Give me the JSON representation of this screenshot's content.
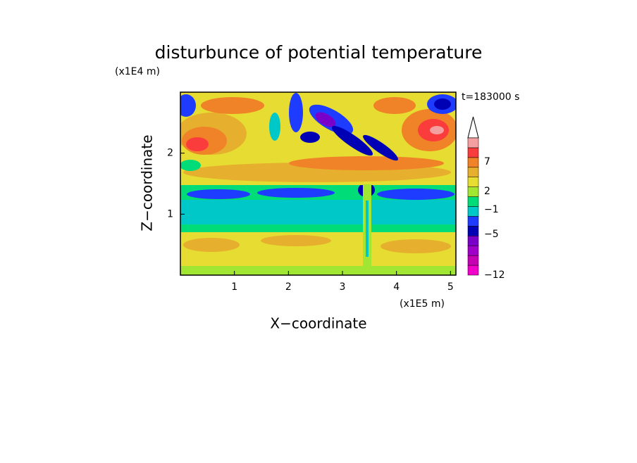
{
  "chart_data": {
    "type": "contour",
    "title": "disturbunce of potential temperature",
    "x_label": "X−coordinate",
    "y_label": "Z−coordinate",
    "x_unit": "(x1E5 m)",
    "y_unit": "(x1E4 m)",
    "annotation": "t=183000 s",
    "xlim": [
      0,
      5.1
    ],
    "ylim": [
      0,
      3
    ],
    "xticks": [
      1,
      2,
      3,
      4,
      5
    ],
    "yticks": [
      1,
      2
    ],
    "colorbar": {
      "colors": [
        "#f000c8",
        "#c800b4",
        "#a000c8",
        "#7800c8",
        "#0000b4",
        "#1e3cff",
        "#00c8c8",
        "#00dc78",
        "#a0e632",
        "#e6dc32",
        "#e6af2d",
        "#f08228",
        "#fa3c3c",
        "#f5a0a0"
      ],
      "labels": [
        {
          "value": -12,
          "label": "−12"
        },
        {
          "value": -5,
          "label": "−5"
        },
        {
          "value": -1,
          "label": "−1"
        },
        2,
        7
      ]
    }
  }
}
